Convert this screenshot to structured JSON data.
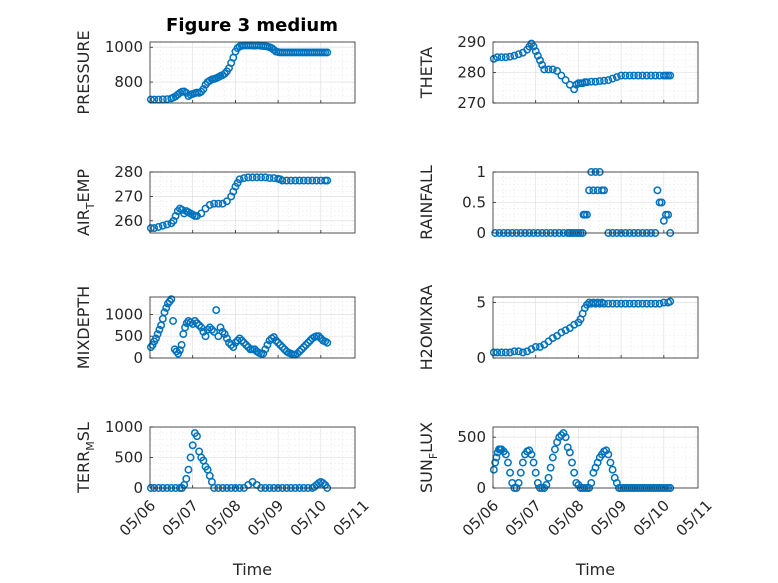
{
  "figure_title": "Figure 3 medium",
  "colors": {
    "marker": "#0072BD",
    "grid": "#dcdcdc",
    "axis": "#262626"
  },
  "chart_data": [
    {
      "type": "scatter",
      "ylabel": "PRESSURE",
      "ylim": [
        680,
        1030
      ],
      "yticks": [
        800,
        1000
      ],
      "ytick_labels": [
        "800",
        "1000"
      ],
      "xlim": [
        0,
        4.8
      ],
      "grid": true,
      "x": [
        0.02,
        0.1,
        0.2,
        0.3,
        0.4,
        0.5,
        0.55,
        0.6,
        0.65,
        0.7,
        0.75,
        0.8,
        0.85,
        0.9,
        0.95,
        1.0,
        1.05,
        1.1,
        1.15,
        1.2,
        1.25,
        1.3,
        1.35,
        1.4,
        1.45,
        1.5,
        1.55,
        1.6,
        1.65,
        1.7,
        1.75,
        1.8,
        1.85,
        1.9,
        1.95,
        2.0,
        2.05,
        2.1,
        2.15,
        2.2,
        2.25,
        2.3,
        2.35,
        2.4,
        2.45,
        2.5,
        2.55,
        2.6,
        2.65,
        2.7,
        2.75,
        2.8,
        2.85,
        2.9,
        2.95,
        3.0,
        3.05,
        3.1,
        3.15,
        3.2,
        3.25,
        3.3,
        3.35,
        3.4,
        3.45,
        3.5,
        3.55,
        3.6,
        3.65,
        3.7,
        3.75,
        3.8,
        3.85,
        3.9,
        3.95,
        4.0,
        4.05,
        4.1,
        4.15
      ],
      "y": [
        700,
        700,
        700,
        701,
        702,
        706,
        712,
        718,
        728,
        738,
        745,
        746,
        738,
        720,
        728,
        732,
        736,
        740,
        738,
        745,
        760,
        785,
        800,
        808,
        815,
        818,
        822,
        828,
        835,
        840,
        848,
        862,
        880,
        910,
        940,
        975,
        995,
        1005,
        1008,
        1010,
        1010,
        1010,
        1010,
        1010,
        1009,
        1010,
        1010,
        1008,
        1007,
        1006,
        1004,
        1000,
        995,
        985,
        975,
        972,
        970,
        970,
        970,
        970,
        970,
        970,
        970,
        970,
        970,
        970,
        970,
        970,
        970,
        970,
        970,
        970,
        970,
        970,
        970,
        970,
        970,
        970,
        970
      ]
    },
    {
      "type": "scatter",
      "ylabel": "THETA",
      "ylim": [
        270,
        290
      ],
      "yticks": [
        270,
        280,
        290
      ],
      "ytick_labels": [
        "270",
        "280",
        "290"
      ],
      "xlim": [
        0,
        4.8
      ],
      "grid": true,
      "x": [
        0.02,
        0.1,
        0.2,
        0.3,
        0.4,
        0.5,
        0.6,
        0.7,
        0.8,
        0.85,
        0.9,
        0.95,
        1.0,
        1.05,
        1.1,
        1.15,
        1.2,
        1.3,
        1.4,
        1.5,
        1.6,
        1.7,
        1.8,
        1.9,
        1.95,
        2.0,
        2.05,
        2.1,
        2.15,
        2.2,
        2.3,
        2.4,
        2.5,
        2.6,
        2.7,
        2.8,
        2.9,
        3.0,
        3.1,
        3.2,
        3.3,
        3.4,
        3.5,
        3.6,
        3.7,
        3.8,
        3.9,
        4.0,
        4.05,
        4.1,
        4.15
      ],
      "y": [
        284.5,
        285,
        285,
        285,
        285.2,
        285.5,
        286,
        286.5,
        287.5,
        288.5,
        289.5,
        288.5,
        287,
        285.5,
        284,
        282.5,
        281,
        281,
        281,
        280.5,
        279,
        277.5,
        276,
        274.5,
        276,
        276.5,
        276.5,
        276.5,
        276.8,
        276.8,
        277,
        277,
        277.2,
        277.3,
        277.5,
        278,
        278.5,
        279,
        279,
        279,
        279,
        279,
        279,
        279,
        279,
        279,
        279,
        279,
        279,
        279,
        279
      ]
    },
    {
      "type": "scatter",
      "ylabel": "AIR",
      "ylabel_sub": "T",
      "ylabel_suffix": "EMP",
      "ylim": [
        255,
        280
      ],
      "yticks": [
        260,
        270,
        280
      ],
      "ytick_labels": [
        "260",
        "270",
        "280"
      ],
      "xlim": [
        0,
        4.8
      ],
      "grid": true,
      "x": [
        0.02,
        0.1,
        0.2,
        0.3,
        0.4,
        0.5,
        0.55,
        0.6,
        0.65,
        0.7,
        0.75,
        0.8,
        0.85,
        0.9,
        0.95,
        1.0,
        1.05,
        1.1,
        1.2,
        1.3,
        1.4,
        1.5,
        1.6,
        1.7,
        1.8,
        1.9,
        1.95,
        2.0,
        2.05,
        2.1,
        2.2,
        2.3,
        2.4,
        2.5,
        2.6,
        2.7,
        2.8,
        2.9,
        3.0,
        3.05,
        3.1,
        3.2,
        3.3,
        3.4,
        3.5,
        3.6,
        3.7,
        3.8,
        3.9,
        4.0,
        4.1,
        4.15
      ],
      "y": [
        257,
        257,
        257.5,
        258,
        258.5,
        259,
        260,
        262,
        264,
        265,
        264.5,
        263,
        264,
        263.5,
        263,
        262.5,
        262,
        262,
        263,
        265,
        266.5,
        267,
        267,
        267,
        268,
        270,
        272,
        274,
        275.5,
        277,
        277.5,
        277.8,
        277.8,
        277.8,
        277.8,
        277.8,
        277.5,
        277.5,
        277.2,
        277,
        276.5,
        276.5,
        276.5,
        276.5,
        276.5,
        276.5,
        276.5,
        276.5,
        276.5,
        276.5,
        276.5,
        276.5
      ]
    },
    {
      "type": "scatter",
      "ylabel": "RAINFALL",
      "ylim": [
        0,
        1
      ],
      "yticks": [
        0,
        0.5,
        1
      ],
      "ytick_labels": [
        "0",
        "0.5",
        "1"
      ],
      "xlim": [
        0,
        4.8
      ],
      "grid": true,
      "x": [
        0.05,
        0.15,
        0.25,
        0.35,
        0.45,
        0.55,
        0.65,
        0.75,
        0.85,
        0.95,
        1.05,
        1.15,
        1.25,
        1.35,
        1.45,
        1.55,
        1.65,
        1.75,
        1.8,
        1.85,
        1.9,
        1.95,
        2.0,
        2.05,
        2.1,
        2.12,
        2.15,
        2.2,
        2.25,
        2.3,
        2.35,
        2.4,
        2.45,
        2.5,
        2.55,
        2.6,
        2.7,
        2.8,
        2.9,
        3.0,
        3.1,
        3.2,
        3.3,
        3.4,
        3.5,
        3.6,
        3.7,
        3.8,
        3.85,
        3.9,
        3.95,
        4.0,
        4.05,
        4.1,
        4.15
      ],
      "y": [
        0,
        0,
        0,
        0,
        0,
        0,
        0,
        0,
        0,
        0,
        0,
        0,
        0,
        0,
        0,
        0,
        0,
        0,
        0,
        0,
        0,
        0,
        0,
        0,
        0,
        0.3,
        0.3,
        0.3,
        0.7,
        1,
        0.7,
        1,
        0.7,
        1,
        0.7,
        0.7,
        0,
        0,
        0,
        0,
        0,
        0,
        0,
        0,
        0,
        0,
        0,
        0,
        0.7,
        0.5,
        0.5,
        0.2,
        0.3,
        0.3,
        0
      ]
    },
    {
      "type": "scatter",
      "ylabel": "MIXDEPTH",
      "ylim": [
        0,
        1400
      ],
      "yticks": [
        0,
        500,
        1000
      ],
      "ytick_labels": [
        "0",
        "500",
        "1000"
      ],
      "xlim": [
        0,
        4.8
      ],
      "grid": true,
      "x": [
        0.02,
        0.06,
        0.1,
        0.14,
        0.18,
        0.22,
        0.26,
        0.3,
        0.34,
        0.38,
        0.42,
        0.46,
        0.5,
        0.54,
        0.58,
        0.62,
        0.66,
        0.7,
        0.74,
        0.78,
        0.82,
        0.86,
        0.9,
        0.95,
        1.0,
        1.05,
        1.1,
        1.15,
        1.2,
        1.25,
        1.3,
        1.35,
        1.4,
        1.45,
        1.5,
        1.55,
        1.6,
        1.65,
        1.7,
        1.75,
        1.8,
        1.85,
        1.9,
        1.95,
        2.0,
        2.05,
        2.1,
        2.15,
        2.2,
        2.25,
        2.3,
        2.35,
        2.4,
        2.45,
        2.5,
        2.55,
        2.6,
        2.65,
        2.7,
        2.75,
        2.8,
        2.85,
        2.9,
        2.95,
        3.0,
        3.05,
        3.1,
        3.15,
        3.2,
        3.25,
        3.3,
        3.35,
        3.4,
        3.45,
        3.5,
        3.55,
        3.6,
        3.65,
        3.7,
        3.75,
        3.8,
        3.85,
        3.9,
        3.95,
        4.0,
        4.05,
        4.1,
        4.15
      ],
      "y": [
        250,
        300,
        380,
        450,
        550,
        650,
        750,
        900,
        1050,
        1150,
        1250,
        1300,
        1350,
        850,
        200,
        150,
        100,
        180,
        300,
        550,
        700,
        800,
        850,
        820,
        780,
        850,
        800,
        750,
        700,
        600,
        500,
        650,
        700,
        650,
        600,
        1100,
        500,
        700,
        600,
        550,
        450,
        350,
        300,
        250,
        350,
        400,
        450,
        400,
        350,
        300,
        250,
        200,
        200,
        200,
        150,
        120,
        100,
        100,
        200,
        300,
        400,
        450,
        480,
        400,
        350,
        300,
        250,
        200,
        150,
        120,
        100,
        80,
        80,
        100,
        150,
        200,
        250,
        300,
        350,
        400,
        450,
        480,
        500,
        500,
        450,
        400,
        380,
        350
      ]
    },
    {
      "type": "scatter",
      "ylabel": "H2OMIXRA",
      "ylim": [
        0,
        5.5
      ],
      "yticks": [
        0,
        5
      ],
      "ytick_labels": [
        "0",
        "5"
      ],
      "xlim": [
        0,
        4.8
      ],
      "grid": true,
      "x": [
        0.02,
        0.1,
        0.2,
        0.3,
        0.4,
        0.5,
        0.6,
        0.7,
        0.8,
        0.9,
        1.0,
        1.1,
        1.2,
        1.3,
        1.4,
        1.5,
        1.6,
        1.7,
        1.8,
        1.9,
        2.0,
        2.05,
        2.1,
        2.15,
        2.2,
        2.25,
        2.3,
        2.35,
        2.4,
        2.45,
        2.5,
        2.55,
        2.6,
        2.7,
        2.8,
        2.9,
        3.0,
        3.1,
        3.2,
        3.3,
        3.4,
        3.5,
        3.6,
        3.7,
        3.8,
        3.9,
        4.0,
        4.1,
        4.15
      ],
      "y": [
        0.5,
        0.5,
        0.5,
        0.5,
        0.5,
        0.6,
        0.6,
        0.5,
        0.6,
        0.8,
        1.0,
        1.0,
        1.2,
        1.5,
        1.8,
        2.0,
        2.3,
        2.5,
        2.7,
        3.0,
        3.2,
        3.5,
        4.0,
        4.5,
        4.8,
        5.0,
        4.9,
        5.0,
        4.9,
        5.0,
        4.9,
        5.0,
        4.9,
        4.9,
        4.9,
        4.9,
        4.9,
        4.9,
        4.9,
        4.9,
        4.9,
        4.9,
        4.9,
        4.9,
        4.9,
        4.9,
        5.0,
        5.0,
        5.1
      ]
    },
    {
      "type": "scatter",
      "ylabel": "TERR",
      "ylabel_sub": "M",
      "ylabel_suffix": "SL",
      "ylim": [
        0,
        1000
      ],
      "yticks": [
        0,
        500,
        1000
      ],
      "ytick_labels": [
        "0",
        "500",
        "1000"
      ],
      "xlim": [
        0,
        4.8
      ],
      "xticks": [
        0,
        1,
        2,
        3,
        4,
        5
      ],
      "xtick_labels": [
        "05/06",
        "05/07",
        "05/08",
        "05/09",
        "05/10",
        "05/11"
      ],
      "xlabel": "Time",
      "grid": true,
      "x": [
        0.02,
        0.1,
        0.2,
        0.3,
        0.4,
        0.5,
        0.6,
        0.7,
        0.75,
        0.8,
        0.85,
        0.9,
        0.95,
        1.0,
        1.05,
        1.1,
        1.15,
        1.2,
        1.25,
        1.3,
        1.35,
        1.4,
        1.45,
        1.5,
        1.6,
        1.7,
        1.8,
        1.9,
        2.0,
        2.1,
        2.2,
        2.3,
        2.4,
        2.5,
        2.6,
        2.7,
        2.8,
        2.9,
        3.0,
        3.1,
        3.2,
        3.3,
        3.4,
        3.5,
        3.6,
        3.7,
        3.8,
        3.85,
        3.9,
        3.95,
        4.0,
        4.05,
        4.1,
        4.15
      ],
      "y": [
        0,
        0,
        0,
        0,
        0,
        0,
        0,
        0,
        0,
        50,
        150,
        300,
        500,
        700,
        900,
        850,
        600,
        500,
        450,
        350,
        300,
        200,
        100,
        0,
        0,
        0,
        0,
        0,
        0,
        0,
        0,
        50,
        100,
        50,
        0,
        0,
        0,
        0,
        0,
        0,
        0,
        0,
        0,
        0,
        0,
        0,
        0,
        20,
        50,
        80,
        100,
        80,
        50,
        0
      ]
    },
    {
      "type": "scatter",
      "ylabel": "SUN",
      "ylabel_sub": "F",
      "ylabel_suffix": "LUX",
      "ylim": [
        0,
        600
      ],
      "yticks": [
        0,
        500
      ],
      "ytick_labels": [
        "0",
        "500"
      ],
      "xlim": [
        0,
        4.8
      ],
      "xticks": [
        0,
        1,
        2,
        3,
        4,
        5
      ],
      "xtick_labels": [
        "05/06",
        "05/07",
        "05/08",
        "05/09",
        "05/10",
        "05/11"
      ],
      "xlabel": "Time",
      "grid": true,
      "x": [
        0.02,
        0.05,
        0.08,
        0.11,
        0.14,
        0.17,
        0.2,
        0.25,
        0.3,
        0.35,
        0.4,
        0.45,
        0.5,
        0.55,
        0.6,
        0.65,
        0.7,
        0.75,
        0.8,
        0.85,
        0.9,
        0.95,
        1.0,
        1.05,
        1.1,
        1.15,
        1.2,
        1.25,
        1.3,
        1.35,
        1.4,
        1.45,
        1.5,
        1.55,
        1.6,
        1.65,
        1.7,
        1.75,
        1.8,
        1.85,
        1.9,
        1.95,
        2.0,
        2.05,
        2.1,
        2.15,
        2.2,
        2.25,
        2.3,
        2.35,
        2.4,
        2.45,
        2.5,
        2.55,
        2.6,
        2.65,
        2.7,
        2.75,
        2.8,
        2.85,
        2.9,
        2.95,
        3.0,
        3.05,
        3.1,
        3.15,
        3.2,
        3.25,
        3.3,
        3.35,
        3.4,
        3.45,
        3.5,
        3.55,
        3.6,
        3.65,
        3.7,
        3.75,
        3.8,
        3.85,
        3.9,
        3.95,
        4.0,
        4.05,
        4.1,
        4.15
      ],
      "y": [
        180,
        250,
        300,
        350,
        380,
        380,
        380,
        360,
        330,
        250,
        150,
        50,
        0,
        0,
        50,
        150,
        250,
        330,
        360,
        370,
        330,
        250,
        150,
        50,
        0,
        0,
        0,
        30,
        100,
        200,
        300,
        380,
        450,
        500,
        520,
        540,
        500,
        400,
        350,
        250,
        150,
        50,
        30,
        0,
        0,
        0,
        0,
        0,
        50,
        150,
        200,
        250,
        300,
        330,
        360,
        370,
        330,
        250,
        180,
        100,
        50,
        0,
        0,
        0,
        0,
        0,
        0,
        0,
        0,
        0,
        0,
        0,
        0,
        0,
        0,
        0,
        0,
        0,
        0,
        0,
        0,
        0,
        0,
        0,
        0,
        0
      ]
    }
  ]
}
